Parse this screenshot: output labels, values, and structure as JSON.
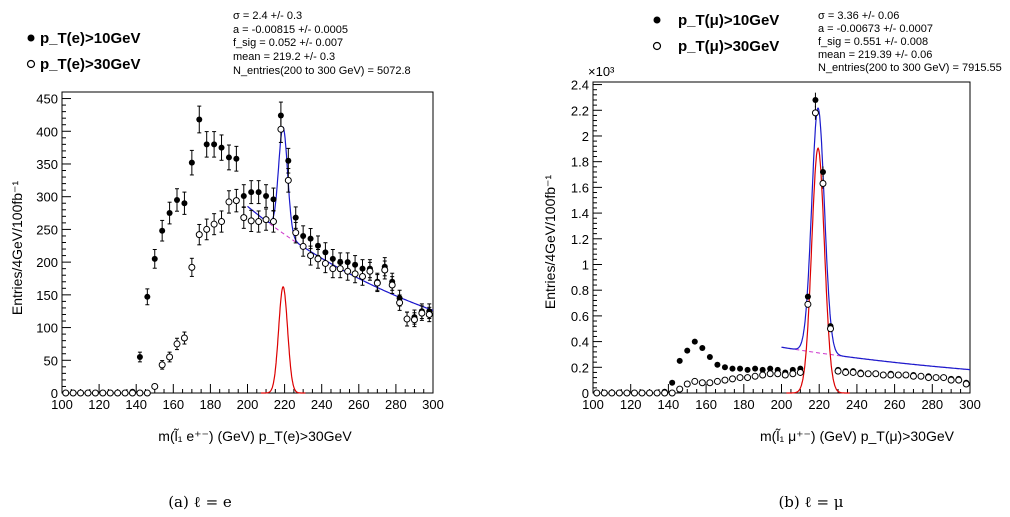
{
  "panels": [
    {
      "caption": "(a)  ℓ = e",
      "legend": [
        "p_T(e)>10GeV",
        "p_T(e)>30GeV"
      ],
      "fit_stats": [
        "σ =  2.4 +/- 0.3",
        "a = -0.00815 +/- 0.0005",
        "f_sig =  0.052 +/- 0.007",
        "mean =  219.2 +/- 0.3",
        "N_entries(200 to 300 GeV) = 5072.8"
      ],
      "ylabel": "Entries/4GeV/100fb⁻¹",
      "xlabel": "m(l̃₁ e⁺⁻) (GeV) p_T(e)>30GeV",
      "exponent": ""
    },
    {
      "caption": "(b)  ℓ = μ",
      "legend": [
        "p_T(μ)>10GeV",
        "p_T(μ)>30GeV"
      ],
      "fit_stats": [
        "σ =  3.36 +/- 0.06",
        "a = -0.00673 +/- 0.0007",
        "f_sig =  0.551 +/- 0.008",
        "mean =  219.39 +/- 0.06",
        "N_entries(200 to 300 GeV) = 7915.55"
      ],
      "ylabel": "Entries/4GeV/100fb⁻¹",
      "xlabel": "m(l̃₁ μ⁺⁻) (GeV) p_T(μ)>30GeV",
      "exponent": "×10³"
    }
  ],
  "chart_data": [
    {
      "type": "scatter",
      "xlim": [
        100,
        300
      ],
      "ylim": [
        0,
        460
      ],
      "xticks": [
        100,
        120,
        140,
        160,
        180,
        200,
        220,
        240,
        260,
        280,
        300
      ],
      "yticks": [
        0,
        50,
        100,
        150,
        200,
        250,
        300,
        350,
        400,
        450
      ],
      "x": [
        102,
        106,
        110,
        114,
        118,
        122,
        126,
        130,
        134,
        138,
        142,
        146,
        150,
        154,
        158,
        162,
        166,
        170,
        174,
        178,
        182,
        186,
        190,
        194,
        198,
        202,
        206,
        210,
        214,
        218,
        222,
        226,
        230,
        234,
        238,
        242,
        246,
        250,
        254,
        258,
        262,
        266,
        270,
        274,
        278,
        282,
        286,
        290,
        294,
        298
      ],
      "series": [
        {
          "name": "p_T(e)>10GeV",
          "marker": "filled",
          "values": [
            0,
            0,
            0,
            0,
            0,
            0,
            0,
            0,
            0,
            2,
            55,
            147,
            205,
            248,
            275,
            295,
            290,
            352,
            418,
            380,
            380,
            375,
            360,
            358,
            301,
            307,
            307,
            301,
            296,
            424,
            355,
            268,
            240,
            236,
            225,
            215,
            205,
            200,
            200,
            196,
            190,
            190,
            170,
            193,
            170,
            145,
            113,
            116,
            125,
            125
          ]
        },
        {
          "name": "p_T(e)>30GeV",
          "marker": "open",
          "values": [
            0,
            0,
            0,
            0,
            0,
            0,
            0,
            0,
            0,
            0,
            0,
            0,
            10,
            43,
            55,
            75,
            84,
            192,
            242,
            250,
            258,
            262,
            292,
            294,
            268,
            263,
            262,
            265,
            262,
            403,
            325,
            245,
            224,
            210,
            205,
            198,
            190,
            190,
            186,
            182,
            178,
            186,
            168,
            188,
            165,
            138,
            113,
            112,
            122,
            120
          ]
        }
      ],
      "fit": {
        "mean": 219.2,
        "sigma": 2.4,
        "a": -0.00815
      }
    },
    {
      "type": "scatter",
      "xlim": [
        100,
        300
      ],
      "ylim": [
        0,
        2.42
      ],
      "xticks": [
        100,
        120,
        140,
        160,
        180,
        200,
        220,
        240,
        260,
        280,
        300
      ],
      "yticks": [
        0,
        0.2,
        0.4,
        0.6,
        0.8,
        1,
        1.2,
        1.4,
        1.6,
        1.8,
        2,
        2.2,
        2.4
      ],
      "x": [
        102,
        106,
        110,
        114,
        118,
        122,
        126,
        130,
        134,
        138,
        142,
        146,
        150,
        154,
        158,
        162,
        166,
        170,
        174,
        178,
        182,
        186,
        190,
        194,
        198,
        202,
        206,
        210,
        214,
        218,
        222,
        226,
        230,
        234,
        238,
        242,
        246,
        250,
        254,
        258,
        262,
        266,
        270,
        274,
        278,
        282,
        286,
        290,
        294,
        298
      ],
      "series": [
        {
          "name": "p_T(μ)>10GeV",
          "marker": "filled",
          "values": [
            0,
            0,
            0,
            0,
            0,
            0,
            0,
            0,
            0,
            0.01,
            0.08,
            0.25,
            0.33,
            0.4,
            0.35,
            0.28,
            0.22,
            0.2,
            0.19,
            0.19,
            0.18,
            0.19,
            0.18,
            0.19,
            0.18,
            0.16,
            0.18,
            0.19,
            0.75,
            2.28,
            1.72,
            0.52,
            0.18,
            0.17,
            0.17,
            0.16,
            0.15,
            0.15,
            0.14,
            0.15,
            0.14,
            0.14,
            0.14,
            0.13,
            0.13,
            0.12,
            0.12,
            0.11,
            0.11,
            0.08
          ]
        },
        {
          "name": "p_T(μ)>30GeV",
          "marker": "open",
          "values": [
            0,
            0,
            0,
            0,
            0,
            0,
            0,
            0,
            0,
            0,
            0,
            0.03,
            0.07,
            0.09,
            0.08,
            0.08,
            0.09,
            0.1,
            0.11,
            0.12,
            0.12,
            0.13,
            0.14,
            0.15,
            0.15,
            0.14,
            0.15,
            0.16,
            0.69,
            2.18,
            1.63,
            0.5,
            0.17,
            0.16,
            0.16,
            0.15,
            0.15,
            0.15,
            0.14,
            0.14,
            0.14,
            0.14,
            0.13,
            0.13,
            0.12,
            0.12,
            0.12,
            0.1,
            0.1,
            0.07
          ]
        }
      ],
      "fit": {
        "mean": 219.39,
        "sigma": 3.36,
        "a": -0.00673
      }
    }
  ]
}
